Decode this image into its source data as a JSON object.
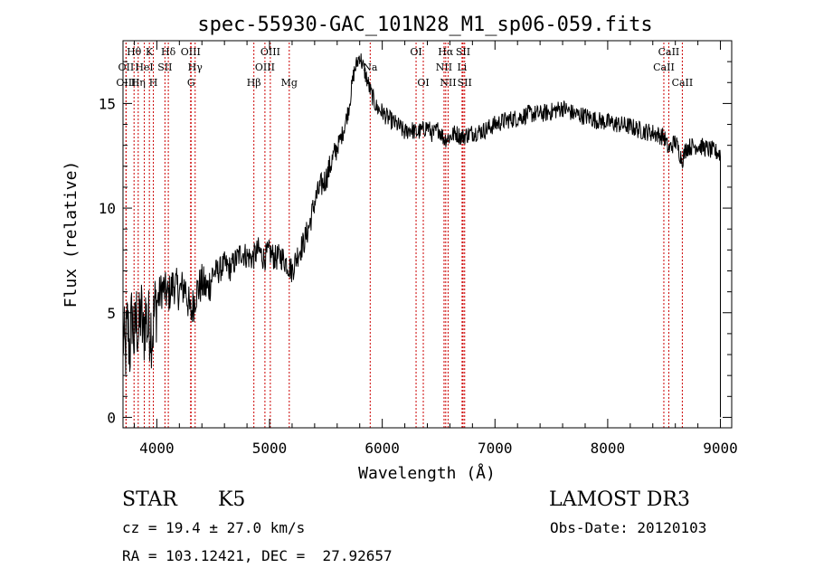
{
  "chart_data": {
    "type": "line",
    "title": "spec-55930-GAC_101N28_M1_sp06-059.fits",
    "xlabel": "Wavelength (Å)",
    "ylabel": "Flux (relative)",
    "xlim": [
      3700,
      9100
    ],
    "ylim": [
      -0.5,
      18
    ],
    "xticks": [
      4000,
      5000,
      6000,
      7000,
      8000,
      9000
    ],
    "yticks": [
      0,
      5,
      10,
      15
    ],
    "xminor_step": 200,
    "yminor_step": 1,
    "grid": false,
    "series": [
      {
        "name": "Flux",
        "x": [
          3700,
          3720,
          3740,
          3760,
          3780,
          3800,
          3820,
          3840,
          3860,
          3880,
          3900,
          3920,
          3940,
          3960,
          3980,
          4000,
          4050,
          4100,
          4150,
          4200,
          4250,
          4300,
          4350,
          4400,
          4450,
          4500,
          4550,
          4600,
          4650,
          4700,
          4750,
          4800,
          4850,
          4900,
          4950,
          5000,
          5050,
          5100,
          5150,
          5200,
          5250,
          5300,
          5350,
          5400,
          5450,
          5500,
          5550,
          5600,
          5650,
          5700,
          5750,
          5800,
          5850,
          5900,
          5950,
          6000,
          6050,
          6100,
          6150,
          6200,
          6250,
          6300,
          6350,
          6400,
          6450,
          6500,
          6550,
          6600,
          6650,
          6700,
          6750,
          6800,
          6900,
          7000,
          7100,
          7200,
          7300,
          7400,
          7500,
          7600,
          7700,
          7800,
          7900,
          8000,
          8100,
          8200,
          8300,
          8400,
          8500,
          8540,
          8600,
          8660,
          8700,
          8800,
          8900,
          9000
        ],
        "y": [
          4.0,
          3.0,
          4.5,
          3.2,
          5.0,
          3.6,
          4.8,
          3.9,
          5.2,
          3.7,
          5.0,
          4.2,
          4.6,
          4.0,
          5.1,
          5.5,
          6.2,
          5.8,
          6.4,
          6.0,
          6.3,
          4.9,
          6.0,
          6.4,
          6.1,
          6.9,
          7.0,
          7.3,
          7.1,
          7.5,
          7.9,
          7.7,
          7.6,
          8.0,
          7.6,
          7.9,
          7.6,
          7.7,
          7.4,
          7.0,
          7.8,
          8.3,
          9.1,
          10.3,
          11.0,
          11.4,
          12.2,
          12.9,
          13.6,
          14.7,
          16.5,
          17.3,
          16.4,
          15.5,
          14.8,
          14.6,
          14.3,
          14.1,
          13.9,
          13.6,
          13.8,
          13.6,
          13.7,
          13.9,
          13.5,
          13.8,
          13.3,
          13.4,
          13.6,
          13.4,
          13.5,
          13.6,
          13.7,
          14.0,
          14.2,
          14.3,
          14.5,
          14.5,
          14.6,
          14.8,
          14.5,
          14.4,
          14.2,
          14.1,
          14.0,
          13.9,
          13.7,
          13.6,
          13.4,
          12.8,
          13.2,
          12.3,
          12.9,
          13.0,
          12.8,
          12.6
        ]
      }
    ],
    "lines": [
      {
        "name": "Hθ",
        "wave": 3798,
        "row": 0
      },
      {
        "name": "OII",
        "wave": 3727,
        "row": 1
      },
      {
        "name": "OIII",
        "wave": 3727,
        "row": 2
      },
      {
        "name": "Hη",
        "wave": 3835,
        "row": 2
      },
      {
        "name": "HeI",
        "wave": 3889,
        "row": 1
      },
      {
        "name": "K",
        "wave": 3934,
        "row": 0
      },
      {
        "name": "H",
        "wave": 3969,
        "row": 2
      },
      {
        "name": "Hδ",
        "wave": 4102,
        "row": 0
      },
      {
        "name": "SII",
        "wave": 4072,
        "row": 1
      },
      {
        "name": "OIII",
        "wave": 4300,
        "row": 0
      },
      {
        "name": "Hγ",
        "wave": 4340,
        "row": 1
      },
      {
        "name": "G",
        "wave": 4304,
        "row": 2
      },
      {
        "name": "Hβ",
        "wave": 4861,
        "row": 2
      },
      {
        "name": "OIII",
        "wave": 4959,
        "row": 1
      },
      {
        "name": "OIII",
        "wave": 5007,
        "row": 0
      },
      {
        "name": "Mg",
        "wave": 5175,
        "row": 2
      },
      {
        "name": "Na",
        "wave": 5893,
        "row": 1
      },
      {
        "name": "OI",
        "wave": 6300,
        "row": 0
      },
      {
        "name": "OI",
        "wave": 6364,
        "row": 2
      },
      {
        "name": "Hα",
        "wave": 6563,
        "row": 0
      },
      {
        "name": "NII",
        "wave": 6548,
        "row": 1
      },
      {
        "name": "NII",
        "wave": 6584,
        "row": 2
      },
      {
        "name": "SII",
        "wave": 6717,
        "row": 0
      },
      {
        "name": "Li",
        "wave": 6708,
        "row": 1
      },
      {
        "name": "SII",
        "wave": 6731,
        "row": 2
      },
      {
        "name": "CaII",
        "wave": 8542,
        "row": 0
      },
      {
        "name": "CaII",
        "wave": 8498,
        "row": 1
      },
      {
        "name": "CaII",
        "wave": 8662,
        "row": 2
      }
    ]
  },
  "info": {
    "class": "STAR",
    "subclass": "K5",
    "survey": "LAMOST DR3",
    "cz": "cz = 19.4 ± 27.0 km/s",
    "obs_date": "Obs-Date: 20120103",
    "coords": "RA = 103.12421, DEC =  27.92657"
  },
  "colors": {
    "line_marker": "#cc0000",
    "spectrum": "#000000"
  }
}
